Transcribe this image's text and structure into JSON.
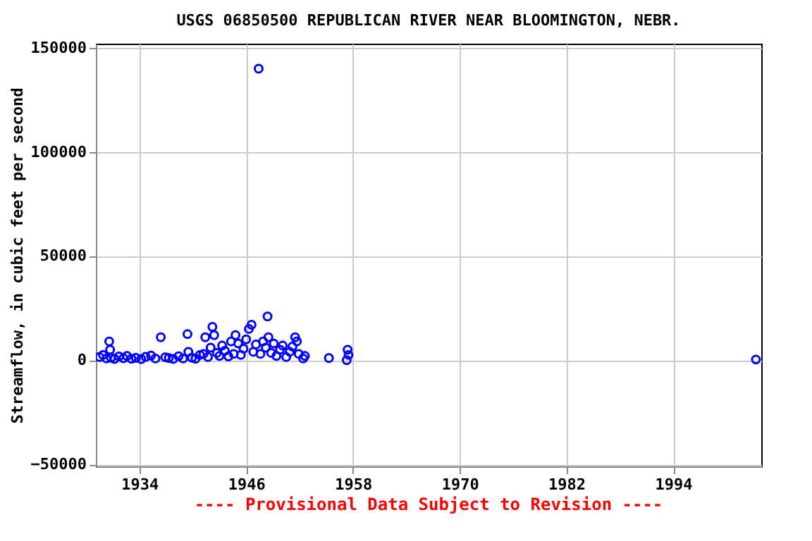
{
  "chart_data": {
    "type": "scatter",
    "title": "USGS 06850500 REPUBLICAN RIVER NEAR BLOOMINGTON, NEBR.",
    "ylabel": "Streamflow, in cubic feet per second",
    "annotations": [
      "---- Provisional Data Subject to Revision ----"
    ],
    "x": [
      1929.5,
      1929.9,
      1930.3,
      1930.6,
      1930.7,
      1930.8,
      1931.2,
      1931.7,
      1932.2,
      1932.6,
      1933.1,
      1933.6,
      1934.2,
      1934.7,
      1935.3,
      1935.8,
      1936.4,
      1936.9,
      1937.3,
      1937.8,
      1938.4,
      1938.9,
      1939.4,
      1939.5,
      1939.9,
      1940.3,
      1940.8,
      1941.2,
      1941.4,
      1941.7,
      1942.0,
      1942.2,
      1942.4,
      1942.7,
      1943.0,
      1943.3,
      1943.6,
      1944.0,
      1944.3,
      1944.6,
      1944.8,
      1945.1,
      1945.4,
      1945.7,
      1946.0,
      1946.3,
      1946.6,
      1946.8,
      1947.1,
      1947.4,
      1947.6,
      1947.9,
      1948.2,
      1948.4,
      1948.5,
      1948.8,
      1949.1,
      1949.4,
      1949.8,
      1950.1,
      1950.5,
      1950.9,
      1951.2,
      1951.5,
      1951.7,
      1951.9,
      1952.4,
      1952.6,
      1955.3,
      1957.3,
      1957.4,
      1957.5,
      2003.3
    ],
    "values": [
      1500,
      2500,
      800,
      9000,
      5000,
      1200,
      600,
      1800,
      900,
      2000,
      700,
      1100,
      500,
      1600,
      2200,
      800,
      11000,
      1400,
      1000,
      600,
      1900,
      800,
      12500,
      4000,
      1200,
      700,
      2500,
      3000,
      11000,
      1500,
      6000,
      16000,
      12000,
      3500,
      2000,
      7000,
      4500,
      1800,
      9000,
      3000,
      12000,
      8000,
      2500,
      5500,
      10000,
      15000,
      17000,
      4000,
      7500,
      140000,
      3000,
      9000,
      6000,
      21000,
      11000,
      3500,
      8000,
      2000,
      5000,
      7000,
      1500,
      4000,
      6500,
      11000,
      9000,
      3000,
      800,
      2000,
      1000,
      0,
      5000,
      2500,
      300
    ],
    "color": "#0000ff",
    "marker": "circle",
    "xlim": [
      1929.1,
      2003.9
    ],
    "xticks": [
      1934,
      1946,
      1958,
      1970,
      1982,
      1994
    ],
    "ylim": [
      -51000,
      152000
    ],
    "yticks": [
      -50000,
      0,
      50000,
      100000,
      150000
    ],
    "grid": true
  }
}
